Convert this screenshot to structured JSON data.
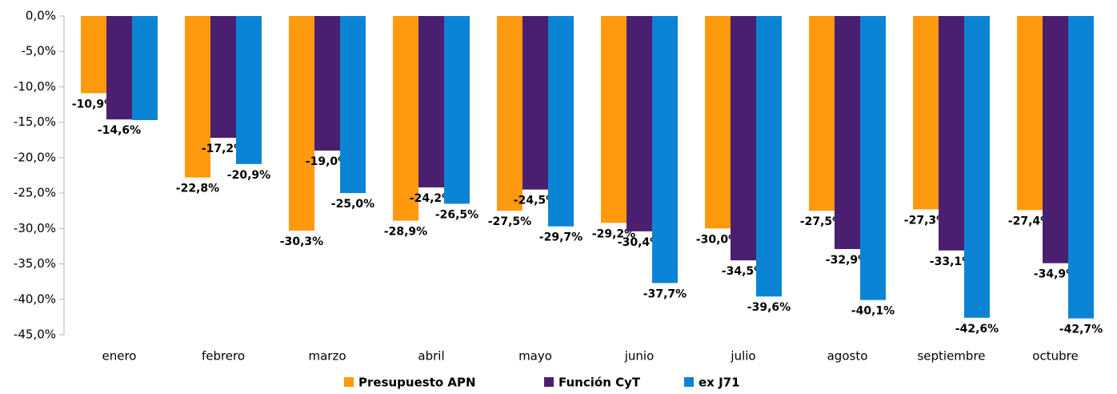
{
  "chart_data": {
    "type": "bar",
    "categories": [
      "enero",
      "febrero",
      "marzo",
      "abril",
      "mayo",
      "junio",
      "julio",
      "agosto",
      "septiembre",
      "octubre"
    ],
    "series": [
      {
        "name": "Presupuesto APN",
        "color": "#ff9a0e",
        "values": [
          -10.9,
          -22.8,
          -30.3,
          -28.9,
          -27.5,
          -29.2,
          -30.0,
          -27.5,
          -27.3,
          -27.4
        ],
        "value_labels": [
          "-10,9%",
          "-22,8%",
          "-30,3%",
          "-28,9%",
          "-27,5%",
          "-29,2%",
          "-30,0%",
          "-27,5%",
          "-27,3%",
          "-27,4%"
        ]
      },
      {
        "name": "Función CyT",
        "color": "#4b1f6f",
        "values": [
          -14.6,
          -17.2,
          -19.0,
          -24.2,
          -24.5,
          -30.4,
          -34.5,
          -32.9,
          -33.1,
          -34.9
        ],
        "value_labels": [
          "-14,6%",
          "-17,2%",
          "-19,0%",
          "-24,2%",
          "-24,5%",
          "-30,4%",
          "-34,5%",
          "-32,9%",
          "-33,1%",
          "-34,9%"
        ]
      },
      {
        "name": "ex J71",
        "color": "#0c84d6",
        "values": [
          -14.7,
          -20.9,
          -25.0,
          -26.5,
          -29.7,
          -37.7,
          -39.6,
          -40.1,
          -42.6,
          -42.7
        ],
        "value_labels": [
          null,
          "-20,9%",
          "-25,0%",
          "-26,5%",
          "-29,7%",
          "-37,7%",
          "-39,6%",
          "-40,1%",
          "-42,6%",
          "-42,7%"
        ]
      }
    ],
    "ylim": [
      -45,
      0
    ],
    "yticks": [
      {
        "value": 0,
        "label": "0,0%"
      },
      {
        "value": -5,
        "label": "-5,0%"
      },
      {
        "value": -10,
        "label": "-10,0%"
      },
      {
        "value": -15,
        "label": "-15,0%"
      },
      {
        "value": -20,
        "label": "-20,0%"
      },
      {
        "value": -25,
        "label": "-25,0%"
      },
      {
        "value": -30,
        "label": "-30,0%"
      },
      {
        "value": -35,
        "label": "-35,0%"
      },
      {
        "value": -40,
        "label": "-40,0%"
      },
      {
        "value": -45,
        "label": "-45,0%"
      }
    ],
    "grid": false,
    "legend": "bottom"
  }
}
